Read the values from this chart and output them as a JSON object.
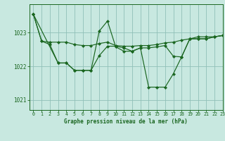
{
  "title": "Graphe pression niveau de la mer (hPa)",
  "background_color": "#c8e8e0",
  "grid_color": "#90c0b8",
  "line_color": "#1a6620",
  "xlim": [
    -0.5,
    23
  ],
  "ylim": [
    1020.7,
    1023.85
  ],
  "yticks": [
    1021,
    1022,
    1023
  ],
  "xticks": [
    0,
    1,
    2,
    3,
    4,
    5,
    6,
    7,
    8,
    9,
    10,
    11,
    12,
    13,
    14,
    15,
    16,
    17,
    18,
    19,
    20,
    21,
    22,
    23
  ],
  "series": [
    {
      "x": [
        0,
        1,
        2,
        3,
        4,
        5,
        6,
        7,
        8,
        9,
        10,
        11,
        12,
        13,
        14,
        15,
        16,
        17,
        18,
        19,
        20,
        21,
        22,
        23
      ],
      "y": [
        1023.55,
        1022.75,
        1022.72,
        1022.72,
        1022.72,
        1022.65,
        1022.62,
        1022.62,
        1022.68,
        1022.72,
        1022.62,
        1022.6,
        1022.6,
        1022.62,
        1022.62,
        1022.65,
        1022.7,
        1022.72,
        1022.78,
        1022.82,
        1022.88,
        1022.88,
        1022.88,
        1022.92
      ]
    },
    {
      "x": [
        0,
        1,
        2,
        3,
        4,
        5,
        6,
        7,
        8,
        9,
        10,
        11,
        12,
        13,
        14,
        15,
        16,
        17,
        18,
        19,
        20,
        21,
        22,
        23
      ],
      "y": [
        1023.55,
        1022.75,
        1022.65,
        1022.1,
        1022.1,
        1021.88,
        1021.88,
        1021.88,
        1022.32,
        1022.6,
        1022.6,
        1022.55,
        1022.45,
        1022.55,
        1021.38,
        1021.38,
        1021.38,
        1021.78,
        1022.28,
        1022.82,
        1022.82,
        1022.82,
        1022.88,
        1022.92
      ]
    },
    {
      "x": [
        0,
        3,
        4,
        5,
        6,
        7,
        8,
        9,
        10,
        11,
        12,
        13,
        14,
        15,
        16,
        17,
        18,
        19,
        20,
        21,
        22,
        23
      ],
      "y": [
        1023.55,
        1022.1,
        1022.1,
        1021.88,
        1021.88,
        1021.88,
        1023.05,
        1023.35,
        1022.58,
        1022.45,
        1022.45,
        1022.55,
        1022.55,
        1022.58,
        1022.62,
        1022.3,
        1022.28,
        1022.82,
        1022.82,
        1022.82,
        1022.88,
        1022.92
      ]
    }
  ]
}
